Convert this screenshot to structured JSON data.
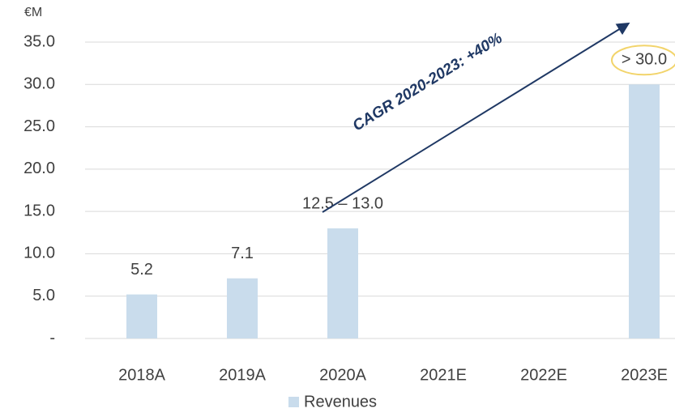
{
  "chart_data": {
    "type": "bar",
    "y_label": "€M",
    "annotation": "CAGR 2020-2023: +40%",
    "categories": [
      "2018A",
      "2019A",
      "2020A",
      "2021E",
      "2022E",
      "2023E"
    ],
    "series": [
      {
        "name": "Revenues",
        "color": "#c9dcec",
        "values": [
          5.2,
          7.1,
          13.0,
          null,
          null,
          30.0
        ],
        "value_labels": [
          "5.2",
          "7.1",
          "12.5 – 13.0",
          null,
          null,
          "> 30.0"
        ]
      }
    ],
    "ylim": [
      0,
      35
    ],
    "yticks": [
      {
        "value": 0,
        "label": "-"
      },
      {
        "value": 5,
        "label": "5.0"
      },
      {
        "value": 10,
        "label": "10.0"
      },
      {
        "value": 15,
        "label": "15.0"
      },
      {
        "value": 20,
        "label": "20.0"
      },
      {
        "value": 25,
        "label": "25.0"
      },
      {
        "value": 30,
        "label": "30.0"
      },
      {
        "value": 35,
        "label": "35.0"
      }
    ],
    "grid": true,
    "legend": "bottom"
  }
}
